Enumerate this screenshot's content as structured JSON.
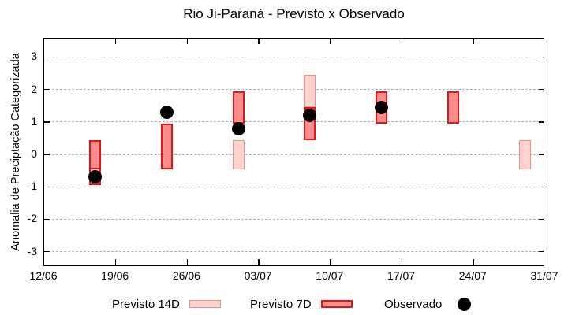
{
  "title": "Rio Ji-Paraná - Previsto x Observado",
  "chart_data": {
    "type": "bar",
    "subtype": "range-bars-with-observed-points",
    "title": "Rio Ji-Paraná - Previsto x Observado",
    "ylabel": "Anomalia de Preciptação Categorizada",
    "ylim": [
      -3.47,
      3.57
    ],
    "yticks": [
      -3,
      -2,
      -1,
      0,
      1,
      2,
      3
    ],
    "grid": "horizontal dashed gray lines at integer y values",
    "legend_position": "bottom",
    "x_axis": {
      "tick_labels": [
        "12/06",
        "19/06",
        "26/06",
        "03/07",
        "10/07",
        "17/07",
        "24/07",
        "31/07"
      ],
      "tick_days": [
        0,
        7,
        14,
        21,
        28,
        35,
        42,
        49
      ],
      "total_days": 49
    },
    "groups": [
      {
        "day": 5,
        "date": "17/06",
        "bars": [
          {
            "series": "previsto_7d",
            "lo": -0.45,
            "hi": 0.45
          },
          {
            "series": "previsto_7d_faded",
            "lo": -0.95,
            "hi": -0.45
          }
        ],
        "observado": -0.7
      },
      {
        "day": 12,
        "date": "24/06",
        "bars": [
          {
            "series": "previsto_7d",
            "lo": -0.45,
            "hi": 0.95
          }
        ],
        "observado": 1.3
      },
      {
        "day": 19,
        "date": "01/07",
        "bars": [
          {
            "series": "previsto_7d",
            "lo": 0.95,
            "hi": 1.95
          },
          {
            "series": "previsto_14d",
            "lo": -0.45,
            "hi": 0.45
          }
        ],
        "observado": 0.8
      },
      {
        "day": 26,
        "date": "08/07",
        "bars": [
          {
            "series": "previsto_14d",
            "lo": 1.45,
            "hi": 2.45
          },
          {
            "series": "previsto_7d",
            "lo": 0.45,
            "hi": 1.45
          }
        ],
        "observado": 1.2
      },
      {
        "day": 33,
        "date": "15/07",
        "bars": [
          {
            "series": "previsto_7d",
            "lo": 0.95,
            "hi": 1.95
          }
        ],
        "observado": 1.45
      },
      {
        "day": 40,
        "date": "22/07",
        "bars": [
          {
            "series": "previsto_7d",
            "lo": 0.95,
            "hi": 1.95
          }
        ],
        "observado": null
      },
      {
        "day": 47,
        "date": "29/07",
        "bars": [
          {
            "series": "previsto_14d",
            "lo": -0.45,
            "hi": 0.45
          }
        ],
        "observado": null
      }
    ],
    "legend": [
      {
        "label": "Previsto 14D",
        "series": "previsto_14d"
      },
      {
        "label": "Previsto 7D",
        "series": "previsto_7d"
      },
      {
        "label": "Observado",
        "series": "observado"
      }
    ],
    "colors": {
      "previsto_14d_fill": "#ffd2ce",
      "previsto_14d_border": "#f0918b",
      "previsto_7d_fill": "#fa8d8d",
      "previsto_7d_border": "#e81313",
      "previsto_7d_faded_fill": "#ffc5c5",
      "observado": "#000000",
      "grid": "#b3b3b3",
      "axis": "#000000",
      "background": "#ffffff"
    }
  }
}
